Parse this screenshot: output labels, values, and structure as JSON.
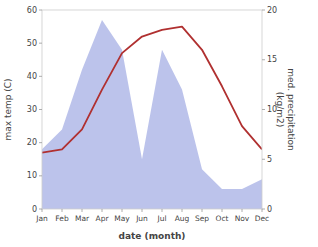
{
  "chart_data": {
    "type": "line",
    "categories": [
      "Jan",
      "Feb",
      "Mar",
      "Apr",
      "May",
      "Jun",
      "Jul",
      "Aug",
      "Sep",
      "Oct",
      "Nov",
      "Dec"
    ],
    "series": [
      {
        "type": "area",
        "axis": "y2",
        "color": "#b0b8e8",
        "values": [
          6.0,
          8.0,
          14.0,
          19.0,
          16.0,
          5.0,
          16.0,
          12.0,
          4.0,
          2.0,
          2.0,
          3.0
        ]
      },
      {
        "type": "line",
        "color": "#b03030",
        "values": [
          17.0,
          18.0,
          24.0,
          36.0,
          47.0,
          52.0,
          54.0,
          55.0,
          48.0,
          37.0,
          25.0,
          18.0
        ]
      }
    ],
    "ylim": [
      0,
      60
    ],
    "yticks": [
      0,
      10,
      20,
      30,
      40,
      50,
      60
    ],
    "y2lim": [
      0,
      20
    ],
    "y2ticks": [
      0,
      5,
      10,
      15,
      20
    ],
    "x_label": "date (month)",
    "y_label": "max temp (C)",
    "y2_label": "med. precipitation\n(kg/m2)",
    "grid": false
  }
}
